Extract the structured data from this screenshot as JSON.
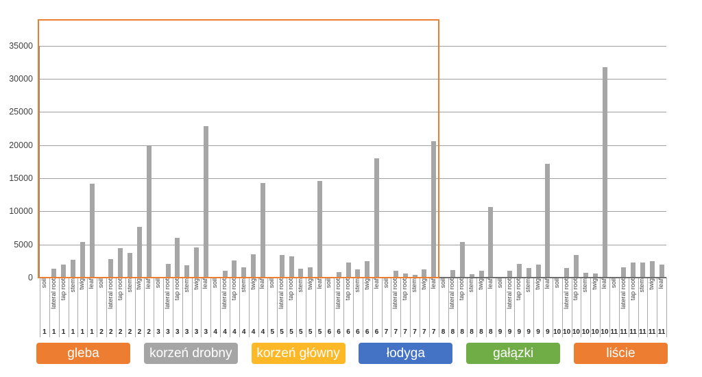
{
  "chart_data": {
    "type": "bar",
    "title": "",
    "xlabel": "",
    "ylabel": "",
    "ylim": [
      0,
      35000
    ],
    "yticks": [
      0,
      5000,
      10000,
      15000,
      20000,
      25000,
      30000,
      35000
    ],
    "grid": true,
    "bar_color": "#A6A6A6",
    "item_labels": [
      "soil",
      "lateral root",
      "tap root",
      "stem",
      "twig",
      "leaf"
    ],
    "groups": [
      {
        "number": "1",
        "values": [
          0,
          1300,
          1950,
          2650,
          5350,
          14200
        ]
      },
      {
        "number": "2",
        "values": [
          0,
          2800,
          4400,
          3700,
          7700,
          19900
        ]
      },
      {
        "number": "3",
        "values": [
          0,
          2100,
          6000,
          1900,
          4550,
          22900
        ]
      },
      {
        "number": "4",
        "values": [
          0,
          1050,
          2600,
          1550,
          3500,
          14300
        ]
      },
      {
        "number": "5",
        "values": [
          0,
          3450,
          3250,
          1300,
          1600,
          14600
        ]
      },
      {
        "number": "6",
        "values": [
          0,
          850,
          2300,
          1250,
          2500,
          18000
        ]
      },
      {
        "number": "7",
        "values": [
          0,
          1000,
          650,
          400,
          1250,
          20600
        ]
      },
      {
        "number": "8",
        "values": [
          0,
          1150,
          5350,
          550,
          1000,
          10700
        ]
      },
      {
        "number": "9",
        "values": [
          0,
          1050,
          2100,
          1500,
          1950,
          17200
        ]
      },
      {
        "number": "10",
        "values": [
          0,
          1500,
          3400,
          700,
          650,
          31700
        ]
      },
      {
        "number": "11",
        "values": [
          0,
          1600,
          2300,
          2250,
          2500,
          1950
        ]
      }
    ],
    "highlight_box": {
      "color": "#ED7D31",
      "from_group": "1",
      "to_group": "7"
    },
    "legend": [
      {
        "label": "gleba",
        "color": "#ED7D31"
      },
      {
        "label": "korzeń drobny",
        "color": "#A5A5A5"
      },
      {
        "label": "korzeń główny",
        "color": "#FCB826"
      },
      {
        "label": "łodyga",
        "color": "#4472C4"
      },
      {
        "label": "gałązki",
        "color": "#70AD47"
      },
      {
        "label": "liście",
        "color": "#ED7D31"
      }
    ],
    "legend_position": "bottom"
  }
}
